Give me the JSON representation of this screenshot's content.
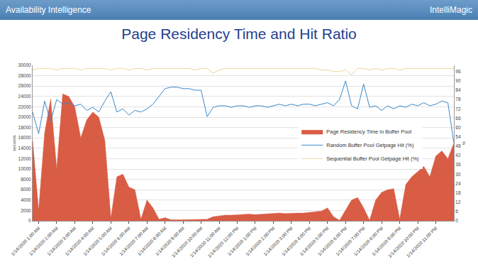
{
  "header": {
    "left": "Availability Intelligence",
    "right": "IntelliMagic"
  },
  "chart_data": {
    "type": "line",
    "title": "Page Residency Time and Hit Ratio",
    "ylabel": "seconds",
    "y2label": "%",
    "categories": [
      null,
      "1/14/2020 1:00 AM",
      null,
      null,
      "1/14/2020 2:00 AM",
      null,
      null,
      "1/14/2020 3:00 AM",
      null,
      null,
      "1/14/2020 4:00 AM",
      null,
      null,
      "1/14/2020 5:00 AM",
      null,
      null,
      "1/14/2020 6:00 AM",
      null,
      null,
      "1/14/2020 7:00 AM",
      null,
      null,
      "1/14/2020 8:00 AM",
      null,
      null,
      "1/14/2020 9:00 AM",
      null,
      null,
      "1/14/2020 10:00 AM",
      null,
      null,
      "1/14/2020 11:00 AM",
      null,
      null,
      "1/14/2020 12:00 PM",
      null,
      null,
      "1/14/2020 1:00 PM",
      null,
      null,
      "1/14/2020 2:00 PM",
      null,
      null,
      "1/14/2020 3:00 PM",
      null,
      null,
      "1/14/2020 4:00 PM",
      null,
      null,
      "1/14/2020 5:00 PM",
      null,
      null,
      "1/14/2020 6:00 PM",
      null,
      null,
      "1/14/2020 7:00 PM",
      null,
      null,
      "1/14/2020 8:00 PM",
      null,
      null,
      "1/14/2020 9:00 PM",
      null,
      null,
      "1/14/2020 10:00 PM",
      null,
      null,
      "1/14/2020 11:00 PM",
      null,
      null,
      null
    ],
    "series": [
      {
        "name": "Page Residency Time in Buffer Pool",
        "type": "area",
        "color": "#d95c44",
        "values": [
          15500,
          2000,
          17000,
          23500,
          10000,
          24500,
          24000,
          22000,
          16000,
          19500,
          21000,
          20000,
          15500,
          500,
          8500,
          9000,
          6500,
          6000,
          300,
          4000,
          2500,
          300,
          600,
          200,
          200,
          200,
          200,
          200,
          200,
          300,
          800,
          1000,
          1100,
          1100,
          1200,
          1200,
          1300,
          1200,
          1300,
          1400,
          1500,
          1500,
          1400,
          1500,
          1500,
          1500,
          1600,
          1700,
          1900,
          2500,
          800,
          100,
          2000,
          4000,
          4500,
          2500,
          100,
          4000,
          5500,
          6000,
          6200,
          300,
          7000,
          8500,
          9500,
          10500,
          8500,
          12500,
          13500,
          12000,
          15000
        ]
      },
      {
        "name": "Random Buffer Pool Getpage Hit (%)",
        "type": "line",
        "axis": "y2",
        "color": "#3a87c8",
        "values": [
          70,
          56,
          77,
          64,
          78,
          75,
          76,
          74,
          75,
          71,
          73,
          70,
          77,
          83,
          70,
          72,
          68,
          71,
          70,
          72,
          75,
          80,
          85,
          86,
          86,
          85,
          85,
          84,
          84,
          67,
          73,
          74,
          74,
          73,
          74,
          74,
          73,
          74,
          74,
          73,
          74,
          75,
          74,
          75,
          74,
          75,
          75,
          74,
          75,
          76,
          74,
          78,
          90,
          74,
          72,
          88,
          73,
          74,
          71,
          74,
          72,
          74,
          73,
          75,
          74,
          76,
          74,
          75,
          77,
          76,
          50
        ]
      },
      {
        "name": "Sequential Buffer Pool Getpage Hit (%)",
        "type": "line",
        "axis": "y2",
        "color": "#f0d49a",
        "values": [
          97,
          98,
          98,
          98,
          97,
          98,
          98,
          98,
          97,
          98,
          98,
          98,
          98,
          97,
          98,
          98,
          97,
          98,
          98,
          97,
          98,
          98,
          98,
          98,
          98,
          98,
          98,
          97,
          98,
          98,
          95,
          97,
          98,
          98,
          98,
          98,
          98,
          98,
          98,
          98,
          98,
          98,
          98,
          98,
          98,
          98,
          98,
          98,
          97,
          97,
          96,
          96,
          97,
          94,
          98,
          98,
          97,
          98,
          97,
          98,
          98,
          97,
          98,
          98,
          98,
          98,
          98,
          98,
          98,
          98,
          98
        ]
      }
    ],
    "ylim": [
      0,
      30000
    ],
    "yticks": [
      0,
      2000,
      4000,
      6000,
      8000,
      10000,
      12000,
      14000,
      16000,
      18000,
      20000,
      22000,
      24000,
      26000,
      28000,
      30000
    ],
    "y2lim": [
      0,
      100
    ],
    "y2ticks": [
      0,
      6,
      12,
      18,
      24,
      30,
      36,
      42,
      48,
      54,
      60,
      66,
      72,
      78,
      84,
      90,
      96
    ],
    "grid": true,
    "legend": "right"
  }
}
